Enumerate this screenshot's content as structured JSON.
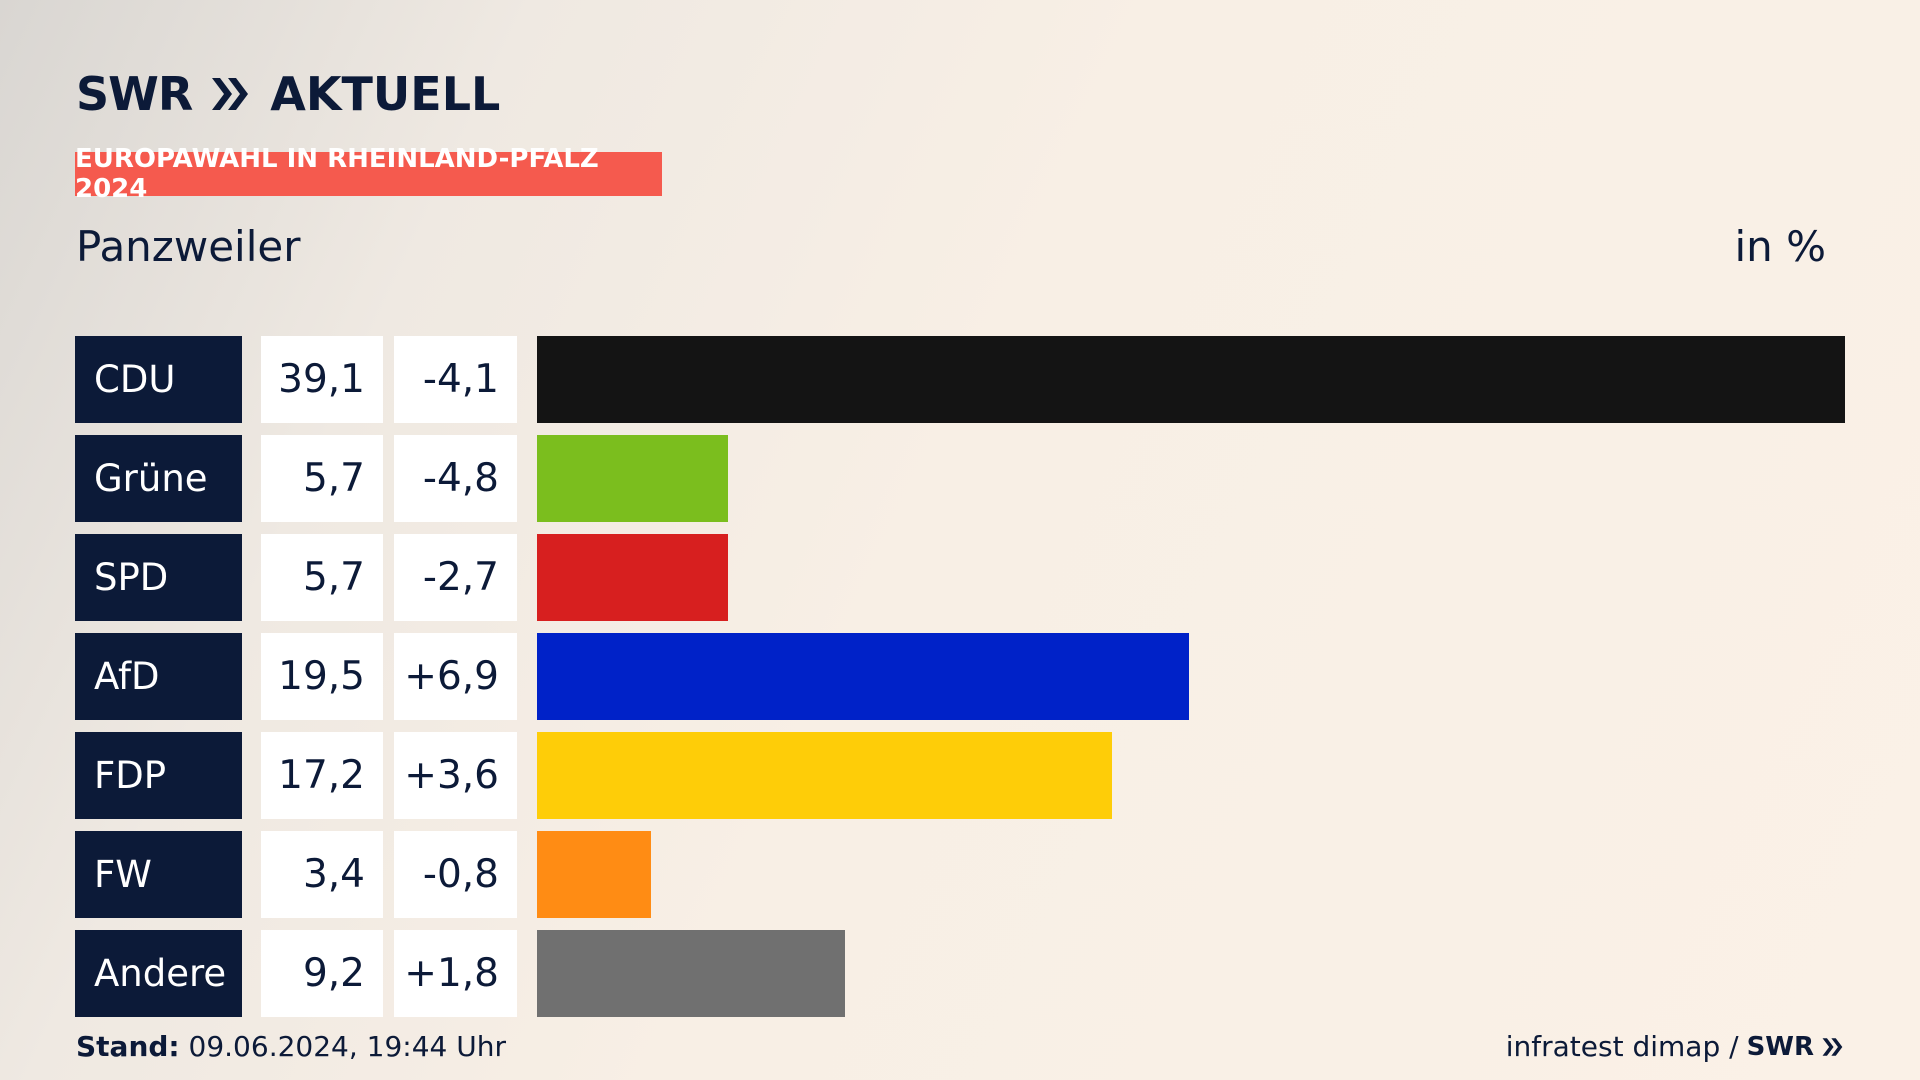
{
  "header": {
    "logo_swr": "SWR",
    "logo_brand": "AKTUELL",
    "tag": "EUROPAWAHL IN RHEINLAND-PFALZ 2024",
    "place": "Panzweiler",
    "unit": "in %"
  },
  "colors": {
    "navy": "#0c1a38",
    "tag_red": "#f55a4e"
  },
  "chart_data": {
    "type": "bar",
    "orientation": "horizontal",
    "categories": [
      "CDU",
      "Grüne",
      "SPD",
      "AfD",
      "FDP",
      "FW",
      "Andere"
    ],
    "values": [
      39.1,
      5.7,
      5.7,
      19.5,
      17.2,
      3.4,
      9.2
    ],
    "value_labels": [
      "39,1",
      "5,7",
      "5,7",
      "19,5",
      "17,2",
      "3,4",
      "9,2"
    ],
    "change_labels": [
      "-4,1",
      "-4,8",
      "-2,7",
      "+6,9",
      "+3,6",
      "-0,8",
      "+1,8"
    ],
    "colors": [
      "#141414",
      "#7bbe1e",
      "#d71f1f",
      "#0022c8",
      "#fecd08",
      "#ff8c14",
      "#707070"
    ],
    "title": "Panzweiler",
    "ylabel": "in %",
    "xlim": [
      0,
      39.1
    ]
  },
  "footer": {
    "stand_label": "Stand:",
    "stand_value": "09.06.2024, 19:44 Uhr",
    "source": "infratest dimap /",
    "source_brand": "SWR"
  }
}
